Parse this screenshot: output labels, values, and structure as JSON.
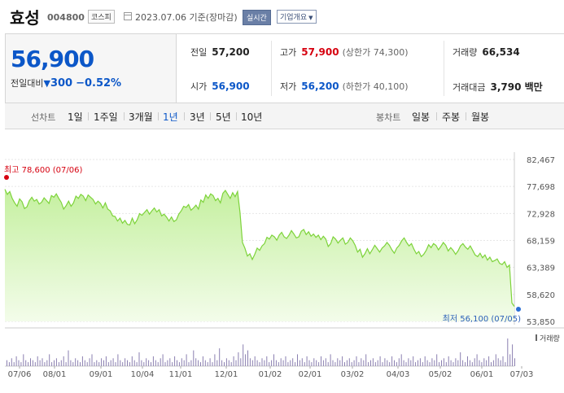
{
  "header": {
    "stock_name": "효성",
    "stock_code": "004800",
    "market_badge": "코스피",
    "date_text": "2023.07.06 기준(장마감)",
    "realtime_button": "실시간",
    "company_button": "기업개요"
  },
  "quote": {
    "price": "56,900",
    "change_label": "전일대비",
    "change_arrow": "▼",
    "change_value": "300",
    "change_pct": "−0.52%",
    "prev_close_label": "전일",
    "prev_close": "57,200",
    "high_label": "고가",
    "high": "57,900",
    "upper_limit": "(상한가 74,300)",
    "volume_label": "거래량",
    "volume": "66,534",
    "open_label": "시가",
    "open": "56,900",
    "low_label": "저가",
    "low": "56,200",
    "lower_limit": "(하한가 40,100)",
    "amount_label": "거래대금",
    "amount": "3,790 백만"
  },
  "tabs": {
    "line_chart_label": "선차트",
    "periods": [
      "1일",
      "1주일",
      "3개월",
      "1년",
      "3년",
      "5년",
      "10년"
    ],
    "active_period": "1년",
    "candle_chart_label": "봉차트",
    "candle_periods": [
      "일봉",
      "주봉",
      "월봉"
    ]
  },
  "colors": {
    "line": "#7dd33a",
    "fill_top": "#c5f0a0",
    "fill_bottom": "#f3fcea",
    "volume_bar": "#8a7fb0",
    "max_marker": "#d6000f",
    "min_marker": "#2a6fd6"
  },
  "chart_data": {
    "type": "area",
    "y_ticks": [
      "82,467",
      "77,698",
      "72,928",
      "68,159",
      "63,389",
      "58,620",
      "53,850"
    ],
    "ylim": [
      53850,
      82467
    ],
    "x_ticks": [
      "07/06",
      "08/01",
      "09/01",
      "10/04",
      "11/01",
      "12/01",
      "01/02",
      "02/01",
      "03/02",
      "04/03",
      "05/02",
      "06/01",
      "07/03"
    ],
    "max_label": "최고 78,600 (07/06)",
    "min_label": "최저 56,100 (07/05)",
    "volume_legend": "거래량",
    "series": [
      {
        "values": [
          77200,
          76300,
          76800,
          75600,
          74800,
          74200,
          75500,
          75000,
          73800,
          74100,
          75200,
          75800,
          75100,
          75400,
          74600,
          74900,
          75700,
          75200,
          74700,
          76100,
          75800,
          76400,
          75600,
          74900,
          73700,
          74300,
          75100,
          74200,
          74800,
          76000,
          75600,
          76300,
          76000,
          75200,
          76200,
          75800,
          75400,
          74600,
          75100,
          74700,
          73900,
          74800,
          73700,
          73400,
          72500,
          72400,
          71600,
          72100,
          71200,
          71700,
          71000,
          70900,
          72100,
          71100,
          71800,
          72900,
          72600,
          73100,
          73600,
          72800,
          73400,
          73900,
          73200,
          73600,
          72500,
          72800,
          72300,
          71600,
          72300,
          71500,
          71800,
          72800,
          73400,
          74200,
          74000,
          74500,
          73500,
          73900,
          74400,
          73700,
          75300,
          74900,
          76200,
          75600,
          76400,
          76100,
          75200,
          75600,
          74800,
          76500,
          77000,
          76300,
          75600,
          76600,
          75900,
          76800,
          73100,
          67800,
          66800,
          65400,
          65800,
          64800,
          65700,
          66800,
          66400,
          67200,
          67600,
          68700,
          68400,
          69100,
          68800,
          68200,
          69100,
          69600,
          68800,
          68500,
          69100,
          69900,
          69300,
          68600,
          68800,
          69800,
          70100,
          69200,
          69700,
          68900,
          69300,
          68700,
          69100,
          68300,
          68900,
          68400,
          67100,
          67600,
          68800,
          68400,
          67700,
          68200,
          68600,
          67500,
          67800,
          68600,
          68100,
          67300,
          66100,
          66600,
          65200,
          65800,
          66700,
          65800,
          66500,
          67300,
          66700,
          66100,
          66800,
          67200,
          67800,
          67300,
          66500,
          65900,
          66800,
          67300,
          68100,
          68600,
          67800,
          67200,
          67600,
          66600,
          65800,
          66200,
          65300,
          65700,
          66400,
          67400,
          66900,
          67600,
          67300,
          66500,
          67100,
          67800,
          67300,
          66300,
          66900,
          66400,
          65700,
          66300,
          67200,
          67600,
          67000,
          66600,
          67200,
          66400,
          65600,
          65300,
          65900,
          65100,
          65600,
          64700,
          65200,
          64400,
          64600,
          64900,
          64100,
          63900,
          64400,
          63400,
          63800,
          57100,
          56500
        ]
      }
    ],
    "volume": [
      3,
      2,
      4,
      2,
      5,
      3,
      2,
      6,
      3,
      2,
      4,
      3,
      2,
      5,
      3,
      4,
      2,
      3,
      6,
      2,
      3,
      4,
      2,
      3,
      5,
      2,
      8,
      3,
      2,
      4,
      3,
      2,
      5,
      3,
      2,
      4,
      6,
      2,
      3,
      2,
      4,
      3,
      5,
      2,
      3,
      4,
      2,
      6,
      3,
      2,
      4,
      3,
      2,
      5,
      3,
      2,
      7,
      3,
      2,
      4,
      3,
      2,
      5,
      3,
      2,
      4,
      6,
      2,
      3,
      4,
      2,
      5,
      3,
      2,
      4,
      3,
      6,
      2,
      3,
      8,
      4,
      3,
      2,
      5,
      3,
      2,
      4,
      2,
      6,
      3,
      9,
      3,
      2,
      4,
      3,
      2,
      5,
      3,
      7,
      4,
      11,
      6,
      8,
      4,
      3,
      5,
      3,
      2,
      4,
      3,
      5,
      2,
      3,
      6,
      3,
      2,
      4,
      3,
      5,
      2,
      3,
      4,
      2,
      6,
      3,
      4,
      2,
      5,
      3,
      2,
      4,
      3,
      2,
      5,
      3,
      4,
      2,
      6,
      3,
      2,
      4,
      3,
      5,
      2,
      3,
      4,
      2,
      3,
      5,
      2,
      4,
      3,
      6,
      2,
      3,
      4,
      2,
      3,
      5,
      2,
      4,
      3,
      2,
      5,
      3,
      2,
      4,
      6,
      3,
      2,
      4,
      3,
      5,
      2,
      3,
      4,
      2,
      5,
      3,
      2,
      4,
      3,
      6,
      2,
      3,
      4,
      2,
      5,
      3,
      2,
      4,
      3,
      7,
      3,
      2,
      5,
      3,
      2,
      4,
      6,
      3,
      2,
      4,
      3,
      5,
      2,
      3,
      6,
      4,
      3,
      5,
      2,
      14,
      6,
      11,
      4
    ]
  }
}
